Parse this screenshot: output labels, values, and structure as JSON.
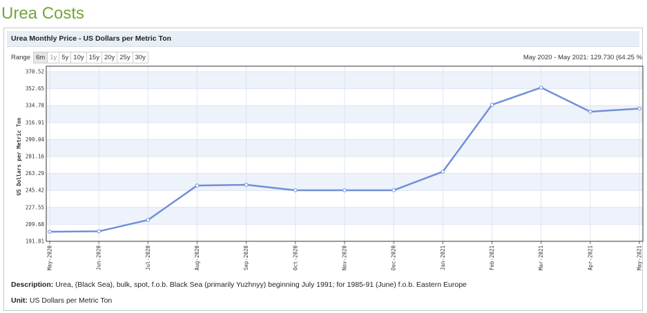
{
  "page_title": "Urea Costs",
  "panel_title": "Urea Monthly Price - US Dollars per Metric Ton",
  "range": {
    "label": "Range",
    "options": [
      "6m",
      "1y",
      "5y",
      "10y",
      "15y",
      "20y",
      "25y",
      "30y"
    ],
    "selected": "6m"
  },
  "change_summary": "May 2020 - May 2021: 129.730 (64.25 %",
  "chart_data": {
    "type": "line",
    "y_label": "US Dollars per Metric Ton",
    "categories": [
      "May-2020",
      "Jun-2020",
      "Jul-2020",
      "Aug-2020",
      "Sep-2020",
      "Oct-2020",
      "Nov-2020",
      "Dec-2020",
      "Jan-2021",
      "Feb-2021",
      "Mar-2021",
      "Apr-2021",
      "May-2021"
    ],
    "series": [
      {
        "name": "Urea",
        "color": "#6f8fd8",
        "values": [
          201.92,
          202.3,
          214.3,
          250.6,
          251.4,
          245.6,
          245.6,
          245.6,
          265.2,
          335.7,
          353.8,
          328.4,
          331.65
        ]
      }
    ],
    "ylim": [
      191.81,
      370.52
    ],
    "yticks": [
      191.81,
      209.68,
      227.55,
      245.42,
      263.29,
      281.16,
      299.04,
      316.91,
      334.78,
      352.65,
      370.52
    ],
    "grid": true
  },
  "description": {
    "label": "Description:",
    "text": "Urea, (Black Sea), bulk, spot, f.o.b. Black Sea (primarily Yuzhnyy) beginning July 1991; for 1985-91 (June) f.o.b. Eastern Europe"
  },
  "unit": {
    "label": "Unit:",
    "text": "US Dollars per Metric Ton"
  }
}
